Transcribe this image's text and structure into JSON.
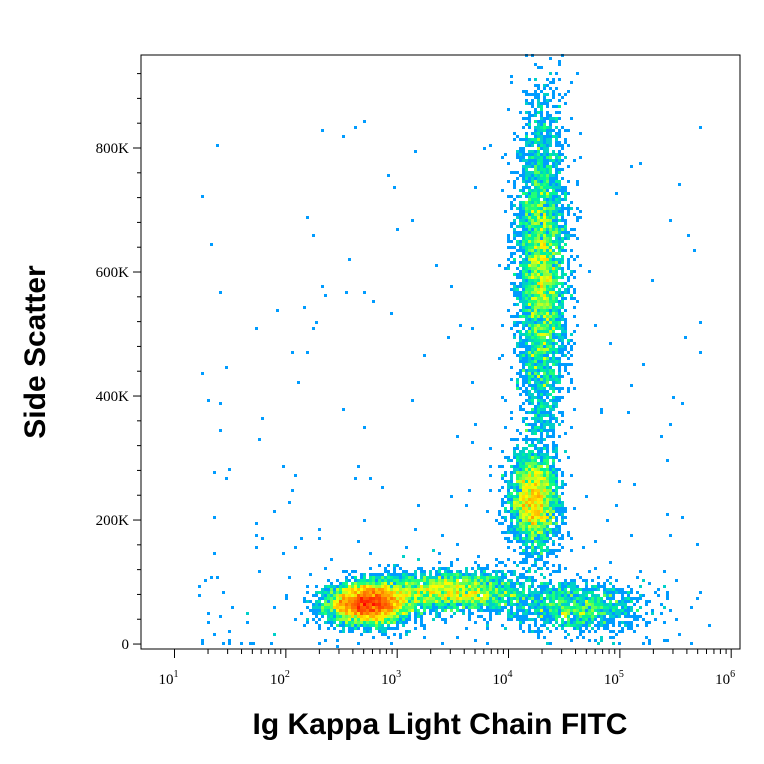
{
  "chart_data": {
    "type": "scatter",
    "style": "flow-cytometry density dot plot (pseudocolor)",
    "title": "",
    "xlabel": "Ig Kappa Light Chain FITC",
    "ylabel": "Side Scatter",
    "x_scale": "log",
    "xlim": [
      5,
      1200000
    ],
    "ylim": [
      -8000,
      950000
    ],
    "x_ticks": [
      {
        "value": 10,
        "base": "10",
        "exp": "1"
      },
      {
        "value": 100,
        "base": "10",
        "exp": "2"
      },
      {
        "value": 1000,
        "base": "10",
        "exp": "3"
      },
      {
        "value": 10000,
        "base": "10",
        "exp": "4"
      },
      {
        "value": 100000,
        "base": "10",
        "exp": "5"
      },
      {
        "value": 1000000,
        "base": "10",
        "exp": "6"
      }
    ],
    "y_ticks": [
      {
        "value": 0,
        "label": "0"
      },
      {
        "value": 200000,
        "label": "200K"
      },
      {
        "value": 400000,
        "label": "400K"
      },
      {
        "value": 600000,
        "label": "600K"
      },
      {
        "value": 800000,
        "label": "800K"
      }
    ],
    "color_scale": [
      "#0000ff",
      "#00aaff",
      "#00ff88",
      "#ffff00",
      "#ff8800",
      "#ff0000"
    ],
    "populations": [
      {
        "center_x": 550,
        "center_y": 65000,
        "sd_log10_x": 0.18,
        "sd_y": 16000,
        "rotation": 0,
        "density": "high"
      },
      {
        "center_x": 3000,
        "center_y": 85000,
        "sd_log10_x": 0.35,
        "sd_y": 17000,
        "rotation": 0,
        "density": "medium"
      },
      {
        "center_x": 20000,
        "center_y": 600000,
        "sd_log10_x": 0.11,
        "sd_y": 130000,
        "rotation": 0,
        "density": "high"
      },
      {
        "center_x": 17000,
        "center_y": 230000,
        "sd_log10_x": 0.11,
        "sd_y": 40000,
        "rotation": 0,
        "density": "medium"
      },
      {
        "center_x": 40000,
        "center_y": 60000,
        "sd_log10_x": 0.3,
        "sd_y": 20000,
        "rotation": 0,
        "density": "low"
      }
    ]
  }
}
